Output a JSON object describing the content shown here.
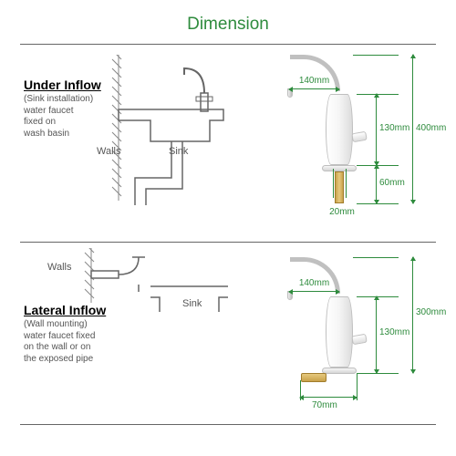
{
  "colors": {
    "title": "#2e8b3d",
    "dim": "#2e8b3d",
    "text": "#333333",
    "rule": "#666666"
  },
  "title": "Dimension",
  "variants": [
    {
      "heading": "Under Inflow",
      "sub": "(Sink installation)\nwater faucet\nfixed on\nwash basin",
      "wallsLabel": "Walls",
      "sinkLabel": "Sink",
      "dims": {
        "spoutReach": "140mm",
        "bodyHeight": "130mm",
        "baseGap": "60mm",
        "stemWidth": "20mm",
        "totalHeight": "400mm"
      }
    },
    {
      "heading": "Lateral Inflow",
      "sub": "(Wall mounting)\nwater faucet fixed\non the wall or on\nthe exposed pipe",
      "wallsLabel": "Walls",
      "sinkLabel": "Sink",
      "dims": {
        "spoutReach": "140mm",
        "bodyHeight": "130mm",
        "sideWidth": "70mm",
        "totalHeight": "300mm"
      }
    }
  ]
}
